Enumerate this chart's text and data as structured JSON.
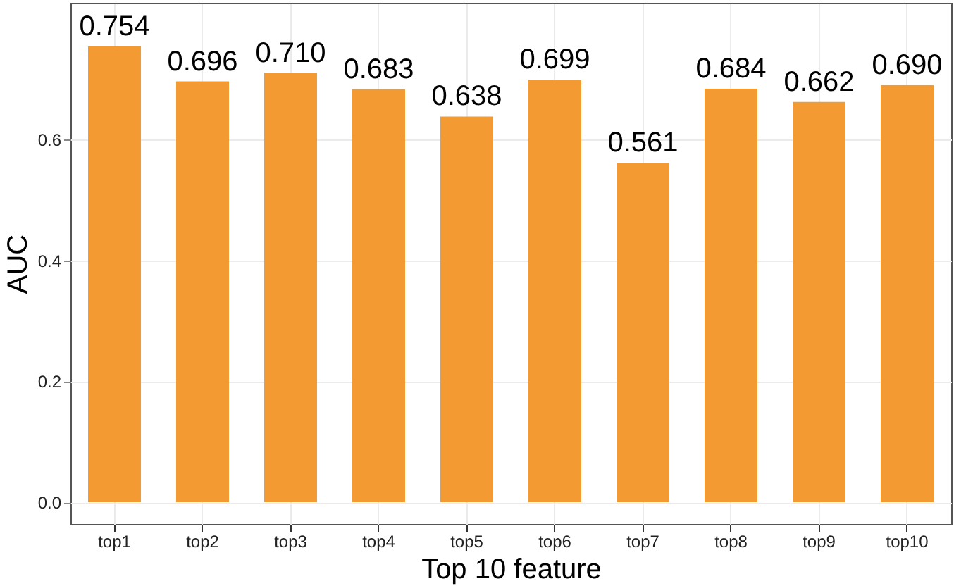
{
  "chart_data": {
    "type": "bar",
    "xlabel": "Top 10 feature",
    "ylabel": "AUC",
    "categories": [
      "top1",
      "top2",
      "top3",
      "top4",
      "top5",
      "top6",
      "top7",
      "top8",
      "top9",
      "top10"
    ],
    "values": [
      0.754,
      0.696,
      0.71,
      0.683,
      0.638,
      0.699,
      0.561,
      0.684,
      0.662,
      0.69
    ],
    "value_labels": [
      "0.754",
      "0.696",
      "0.710",
      "0.683",
      "0.638",
      "0.699",
      "0.561",
      "0.684",
      "0.662",
      "0.690"
    ],
    "color": "#f39a33",
    "ylim": [
      -0.036,
      0.826
    ],
    "yticks": [
      {
        "value": 0,
        "label": "0.0"
      },
      {
        "value": 0.2,
        "label": "0.2"
      },
      {
        "value": 0.4,
        "label": "0.4"
      },
      {
        "value": 0.6,
        "label": "0.6"
      }
    ],
    "grid": true
  }
}
